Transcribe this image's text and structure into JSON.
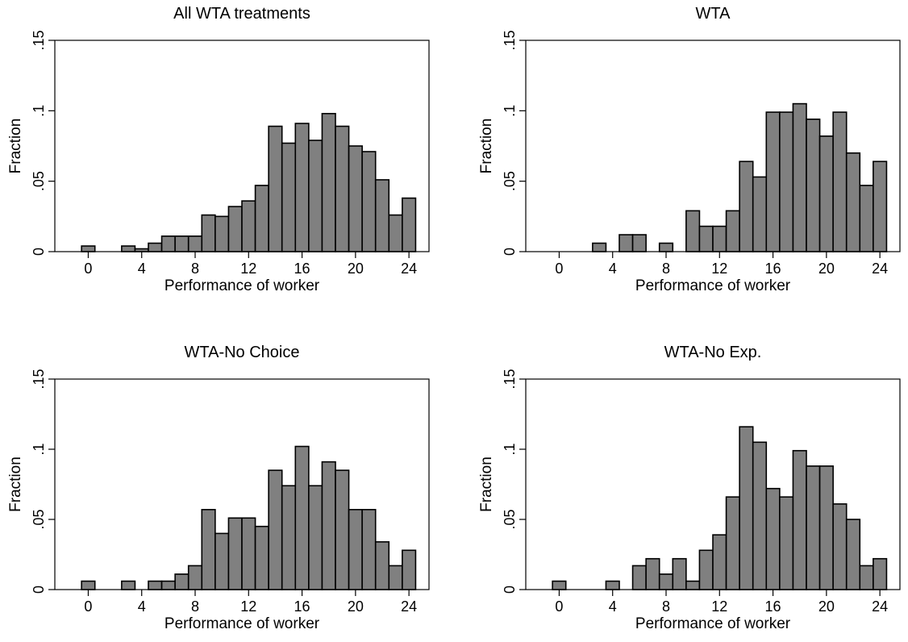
{
  "colors": {
    "bar_fill": "#808080",
    "bar_edge": "#000000",
    "background": "#ffffff"
  },
  "chart_data": [
    {
      "type": "bar",
      "title": "All WTA treatments",
      "xlabel": "Performance of worker",
      "ylabel": "Fraction",
      "xlim": [
        -2.5,
        25.5
      ],
      "ylim": [
        0,
        0.15
      ],
      "xticks": [
        0,
        4,
        8,
        12,
        16,
        20,
        24
      ],
      "xtick_labels": [
        "0",
        "4",
        "8",
        "12",
        "16",
        "20",
        "24"
      ],
      "yticks": [
        0,
        0.05,
        0.1,
        0.15
      ],
      "ytick_labels": [
        "0",
        ".05",
        ".1",
        ".15"
      ],
      "bin_width": 1,
      "x": [
        0,
        1,
        2,
        3,
        4,
        5,
        6,
        7,
        8,
        9,
        10,
        11,
        12,
        13,
        14,
        15,
        16,
        17,
        18,
        19,
        20,
        21,
        22,
        23,
        24
      ],
      "values": [
        0.004,
        0,
        0,
        0.004,
        0.002,
        0.006,
        0.011,
        0.011,
        0.011,
        0.026,
        0.025,
        0.032,
        0.036,
        0.047,
        0.089,
        0.077,
        0.091,
        0.079,
        0.098,
        0.089,
        0.075,
        0.071,
        0.051,
        0.026,
        0.038
      ]
    },
    {
      "type": "bar",
      "title": "WTA",
      "xlabel": "Performance of worker",
      "ylabel": "Fraction",
      "xlim": [
        -2.5,
        25.5
      ],
      "ylim": [
        0,
        0.15
      ],
      "xticks": [
        0,
        4,
        8,
        12,
        16,
        20,
        24
      ],
      "xtick_labels": [
        "0",
        "4",
        "8",
        "12",
        "16",
        "20",
        "24"
      ],
      "yticks": [
        0,
        0.05,
        0.1,
        0.15
      ],
      "ytick_labels": [
        "0",
        ".05",
        ".1",
        ".15"
      ],
      "bin_width": 1,
      "x": [
        0,
        1,
        2,
        3,
        4,
        5,
        6,
        7,
        8,
        9,
        10,
        11,
        12,
        13,
        14,
        15,
        16,
        17,
        18,
        19,
        20,
        21,
        22,
        23,
        24
      ],
      "values": [
        0,
        0,
        0,
        0.006,
        0,
        0.012,
        0.012,
        0,
        0.006,
        0,
        0.029,
        0.018,
        0.018,
        0.029,
        0.064,
        0.053,
        0.099,
        0.099,
        0.105,
        0.094,
        0.082,
        0.099,
        0.07,
        0.047,
        0.064
      ]
    },
    {
      "type": "bar",
      "title": "WTA-No Choice",
      "xlabel": "Performance of worker",
      "ylabel": "Fraction",
      "xlim": [
        -2.5,
        25.5
      ],
      "ylim": [
        0,
        0.15
      ],
      "xticks": [
        0,
        4,
        8,
        12,
        16,
        20,
        24
      ],
      "xtick_labels": [
        "0",
        "4",
        "8",
        "12",
        "16",
        "20",
        "24"
      ],
      "yticks": [
        0,
        0.05,
        0.1,
        0.15
      ],
      "ytick_labels": [
        "0",
        ".05",
        ".1",
        ".15"
      ],
      "bin_width": 1,
      "x": [
        0,
        1,
        2,
        3,
        4,
        5,
        6,
        7,
        8,
        9,
        10,
        11,
        12,
        13,
        14,
        15,
        16,
        17,
        18,
        19,
        20,
        21,
        22,
        23,
        24
      ],
      "values": [
        0.006,
        0,
        0,
        0.006,
        0,
        0.006,
        0.006,
        0.011,
        0.017,
        0.057,
        0.04,
        0.051,
        0.051,
        0.045,
        0.085,
        0.074,
        0.102,
        0.074,
        0.091,
        0.085,
        0.057,
        0.057,
        0.034,
        0.017,
        0.028
      ]
    },
    {
      "type": "bar",
      "title": "WTA-No Exp.",
      "xlabel": "Performance of worker",
      "ylabel": "Fraction",
      "xlim": [
        -2.5,
        25.5
      ],
      "ylim": [
        0,
        0.15
      ],
      "xticks": [
        0,
        4,
        8,
        12,
        16,
        20,
        24
      ],
      "xtick_labels": [
        "0",
        "4",
        "8",
        "12",
        "16",
        "20",
        "24"
      ],
      "yticks": [
        0,
        0.05,
        0.1,
        0.15
      ],
      "ytick_labels": [
        "0",
        ".05",
        ".1",
        ".15"
      ],
      "bin_width": 1,
      "x": [
        0,
        1,
        2,
        3,
        4,
        5,
        6,
        7,
        8,
        9,
        10,
        11,
        12,
        13,
        14,
        15,
        16,
        17,
        18,
        19,
        20,
        21,
        22,
        23,
        24
      ],
      "values": [
        0.006,
        0,
        0,
        0,
        0.006,
        0,
        0.017,
        0.022,
        0.011,
        0.022,
        0.006,
        0.028,
        0.039,
        0.066,
        0.116,
        0.105,
        0.072,
        0.066,
        0.099,
        0.088,
        0.088,
        0.061,
        0.05,
        0.017,
        0.022
      ]
    }
  ]
}
